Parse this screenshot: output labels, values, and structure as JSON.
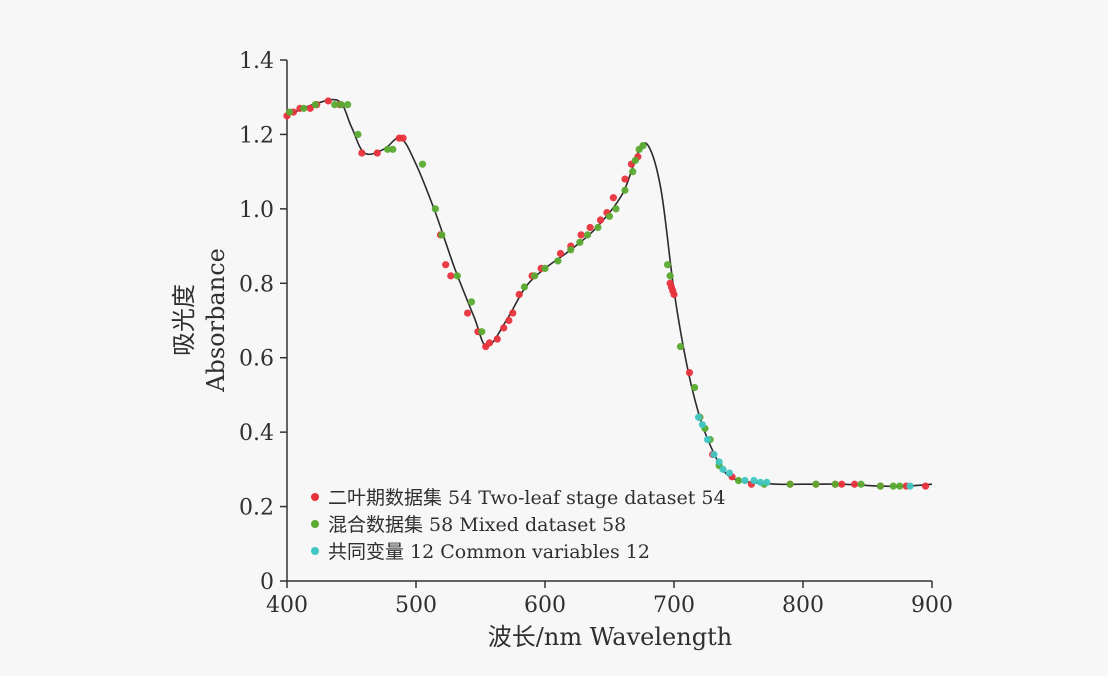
{
  "chart_data": {
    "type": "scatter",
    "title": "",
    "xlabel": "波长/nm Wavelength",
    "ylabel_cn": "吸光度",
    "ylabel_en": "Absorbance",
    "xlim": [
      400,
      900
    ],
    "ylim": [
      0,
      1.4
    ],
    "xticks": [
      400,
      500,
      600,
      700,
      800,
      900
    ],
    "yticks": [
      0,
      0.2,
      0.4,
      0.6,
      0.8,
      1.0,
      1.2,
      1.4
    ],
    "ytick_labels": [
      "0",
      "0.2",
      "0.4",
      "0.6",
      "0.8",
      "1.0",
      "1.2",
      "1.4"
    ],
    "grid": false,
    "legend_position": "bottom-left",
    "curve": {
      "color": "#2a2a2a",
      "x": [
        400,
        420,
        440,
        450,
        460,
        475,
        488,
        500,
        515,
        530,
        545,
        555,
        570,
        585,
        600,
        620,
        640,
        660,
        672,
        680,
        690,
        700,
        710,
        720,
        730,
        740,
        750,
        760,
        780,
        800,
        830,
        860,
        880,
        900
      ],
      "y": [
        1.25,
        1.28,
        1.29,
        1.22,
        1.15,
        1.16,
        1.19,
        1.12,
        0.99,
        0.84,
        0.71,
        0.63,
        0.7,
        0.79,
        0.84,
        0.89,
        0.95,
        1.04,
        1.15,
        1.17,
        1.05,
        0.78,
        0.58,
        0.44,
        0.35,
        0.29,
        0.27,
        0.265,
        0.26,
        0.26,
        0.26,
        0.255,
        0.255,
        0.26
      ]
    },
    "series": [
      {
        "name": "二叶期数据集 54 Two-leaf stage dataset 54",
        "color": "#e8323c",
        "x": [
          400,
          405,
          410,
          418,
          423,
          432,
          441,
          458,
          470,
          487,
          490,
          519,
          523,
          527,
          540,
          548,
          554,
          557,
          563,
          568,
          572,
          575,
          580,
          590,
          597,
          612,
          620,
          628,
          635,
          643,
          648,
          653,
          662,
          667,
          672,
          697,
          698,
          699,
          700,
          712,
          720,
          730,
          745,
          760,
          790,
          810,
          825,
          830,
          840,
          860,
          880,
          895
        ],
        "y": [
          1.25,
          1.26,
          1.27,
          1.27,
          1.28,
          1.29,
          1.28,
          1.15,
          1.15,
          1.19,
          1.19,
          0.93,
          0.85,
          0.82,
          0.72,
          0.67,
          0.63,
          0.64,
          0.65,
          0.68,
          0.7,
          0.72,
          0.77,
          0.82,
          0.84,
          0.88,
          0.9,
          0.93,
          0.95,
          0.97,
          0.99,
          1.03,
          1.08,
          1.12,
          1.14,
          0.8,
          0.79,
          0.78,
          0.77,
          0.56,
          0.44,
          0.34,
          0.28,
          0.26,
          0.26,
          0.26,
          0.26,
          0.26,
          0.26,
          0.255,
          0.255,
          0.255
        ]
      },
      {
        "name": "混合数据集 58 Mixed dataset 58",
        "color": "#5aaa30",
        "x": [
          402,
          413,
          422,
          437,
          442,
          447,
          455,
          478,
          482,
          505,
          515,
          520,
          532,
          543,
          551,
          584,
          592,
          600,
          610,
          620,
          627,
          633,
          641,
          650,
          655,
          662,
          668,
          670,
          673,
          676,
          695,
          697,
          705,
          716,
          720,
          724,
          728,
          735,
          750,
          770,
          790,
          810,
          825,
          845,
          860,
          870,
          875
        ],
        "y": [
          1.26,
          1.27,
          1.28,
          1.28,
          1.28,
          1.28,
          1.2,
          1.16,
          1.16,
          1.12,
          1.0,
          0.93,
          0.82,
          0.75,
          0.67,
          0.79,
          0.82,
          0.84,
          0.86,
          0.89,
          0.91,
          0.93,
          0.95,
          0.98,
          1.0,
          1.05,
          1.1,
          1.13,
          1.16,
          1.17,
          0.85,
          0.82,
          0.63,
          0.52,
          0.44,
          0.41,
          0.38,
          0.31,
          0.27,
          0.26,
          0.26,
          0.26,
          0.26,
          0.26,
          0.255,
          0.255,
          0.255
        ]
      },
      {
        "name": "共同变量 12 Common variables 12",
        "color": "#3fc7c4",
        "x": [
          719,
          722,
          726,
          731,
          735,
          738,
          743,
          755,
          762,
          767,
          772,
          883
        ],
        "y": [
          0.44,
          0.42,
          0.38,
          0.34,
          0.32,
          0.3,
          0.29,
          0.27,
          0.27,
          0.265,
          0.265,
          0.255
        ]
      }
    ]
  }
}
